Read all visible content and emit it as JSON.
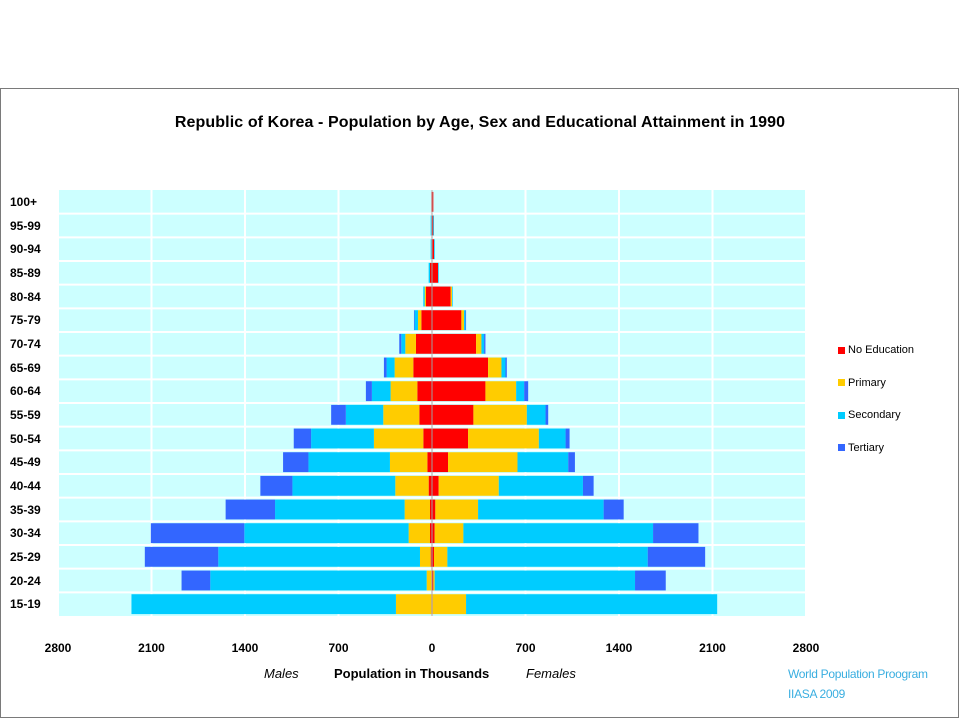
{
  "chart_data": {
    "type": "bar",
    "title": "Republic of Korea - Population by Age, Sex and Educational Attainment in 1990",
    "xlabel": "Population in Thousands",
    "side_labels": {
      "left": "Males",
      "right": "Females"
    },
    "xlim": [
      -2800,
      2800
    ],
    "x_ticks": [
      "2800",
      "2100",
      "1400",
      "700",
      "0",
      "700",
      "1400",
      "2100",
      "2800"
    ],
    "categories": [
      "100+",
      "95-99",
      "90-94",
      "85-89",
      "80-84",
      "75-79",
      "70-74",
      "65-69",
      "60-64",
      "55-59",
      "50-54",
      "45-49",
      "40-44",
      "35-39",
      "30-34",
      "25-29",
      "20-24",
      "15-19"
    ],
    "legend_position": "right",
    "grid": true,
    "series": [
      {
        "name": "No Education",
        "color": "#ff0000",
        "males": [
          5,
          5,
          5,
          15,
          45,
          80,
          120,
          140,
          110,
          95,
          65,
          35,
          25,
          15,
          15,
          10,
          5,
          5
        ],
        "females": [
          10,
          10,
          15,
          45,
          140,
          220,
          330,
          420,
          400,
          310,
          270,
          120,
          50,
          25,
          20,
          15,
          10,
          5
        ]
      },
      {
        "name": "Primary",
        "color": "#ffcc00",
        "males": [
          0,
          0,
          0,
          0,
          10,
          25,
          80,
          140,
          200,
          270,
          370,
          280,
          250,
          190,
          160,
          80,
          35,
          265
        ],
        "females": [
          0,
          0,
          0,
          0,
          10,
          20,
          40,
          100,
          230,
          400,
          530,
          520,
          450,
          320,
          215,
          100,
          10,
          250
        ]
      },
      {
        "name": "Secondary",
        "color": "#00ccff",
        "males": [
          0,
          5,
          5,
          10,
          10,
          25,
          30,
          60,
          140,
          280,
          470,
          610,
          770,
          970,
          1230,
          1510,
          1620,
          1980
        ],
        "females": [
          0,
          5,
          5,
          5,
          5,
          10,
          20,
          30,
          60,
          140,
          200,
          380,
          630,
          940,
          1420,
          1500,
          1500,
          1880
        ]
      },
      {
        "name": "Tertiary",
        "color": "#3366ff",
        "males": [
          0,
          0,
          0,
          0,
          0,
          5,
          15,
          20,
          45,
          110,
          130,
          190,
          240,
          370,
          700,
          550,
          215,
          0
        ],
        "females": [
          0,
          0,
          0,
          0,
          0,
          5,
          10,
          10,
          30,
          20,
          30,
          50,
          80,
          150,
          340,
          430,
          230,
          0
        ]
      }
    ]
  },
  "credit": {
    "line1": "World Population Proogram",
    "line2": "IIASA 2009"
  }
}
